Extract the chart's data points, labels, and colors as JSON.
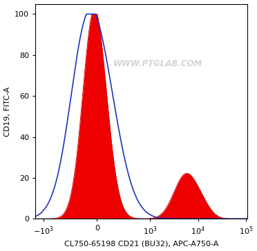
{
  "xlabel": "CL750-65198 CD21 (BU32), APC-A750-A",
  "ylabel": "CD19, FITC-A",
  "watermark": "WWW.PTGLAB.COM",
  "ylim": [
    0,
    105
  ],
  "yticks": [
    0,
    20,
    40,
    60,
    80,
    100
  ],
  "bg_color": "#ffffff",
  "plot_bg_color": "#ffffff",
  "blue_color": "#2233bb",
  "red_color": "#cc0000",
  "red_fill_color": "#ee0000",
  "blue_linewidth": 1.2,
  "red_linewidth": 0.6,
  "linthresh": 1000,
  "linscale": 1.0
}
